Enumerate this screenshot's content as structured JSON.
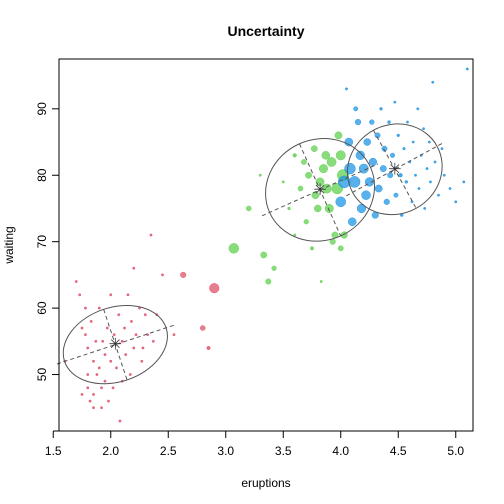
{
  "chart_data": {
    "type": "scatter",
    "title": "Uncertainty",
    "xlabel": "eruptions",
    "ylabel": "waiting",
    "xlim": [
      1.55,
      5.15
    ],
    "ylim": [
      41.5,
      97.5
    ],
    "grid": false,
    "x_ticks": [
      "1.5",
      "2.0",
      "2.5",
      "3.0",
      "3.5",
      "4.0",
      "4.5",
      "5.0"
    ],
    "y_ticks": [
      "50",
      "60",
      "70",
      "80",
      "90"
    ],
    "marker_size_encodes": "classification uncertainty",
    "series": [
      {
        "color": "#DF536B",
        "points": [
          [
            1.6,
            52
          ],
          [
            1.7,
            64
          ],
          [
            1.73,
            62
          ],
          [
            1.75,
            47
          ],
          [
            1.75,
            57
          ],
          [
            1.78,
            60
          ],
          [
            1.78,
            56
          ],
          [
            1.8,
            54
          ],
          [
            1.8,
            50
          ],
          [
            1.8,
            48
          ],
          [
            1.82,
            46
          ],
          [
            1.83,
            58
          ],
          [
            1.85,
            52
          ],
          [
            1.85,
            47
          ],
          [
            1.85,
            45
          ],
          [
            1.87,
            55
          ],
          [
            1.88,
            50
          ],
          [
            1.9,
            60
          ],
          [
            1.9,
            51
          ],
          [
            1.92,
            48
          ],
          [
            1.92,
            45
          ],
          [
            1.93,
            55
          ],
          [
            1.95,
            53
          ],
          [
            1.95,
            49
          ],
          [
            1.97,
            57
          ],
          [
            1.98,
            46
          ],
          [
            2.0,
            52
          ],
          [
            2.0,
            62
          ],
          [
            2.02,
            48
          ],
          [
            2.03,
            56
          ],
          [
            2.05,
            51
          ],
          [
            2.07,
            59
          ],
          [
            2.08,
            43
          ],
          [
            2.1,
            55
          ],
          [
            2.1,
            49
          ],
          [
            2.12,
            57
          ],
          [
            2.13,
            53
          ],
          [
            2.15,
            62
          ],
          [
            2.17,
            50
          ],
          [
            2.18,
            58
          ],
          [
            2.2,
            54
          ],
          [
            2.2,
            66
          ],
          [
            2.22,
            56
          ],
          [
            2.25,
            60
          ],
          [
            2.27,
            52
          ],
          [
            2.28,
            54
          ],
          [
            2.3,
            59
          ],
          [
            2.32,
            56
          ],
          [
            2.35,
            71
          ],
          [
            2.37,
            55
          ],
          [
            2.4,
            59
          ],
          [
            2.45,
            65
          ],
          [
            2.55,
            56
          ],
          [
            2.63,
            65
          ],
          [
            2.8,
            57
          ],
          [
            2.85,
            54
          ],
          [
            2.9,
            63
          ]
        ]
      },
      {
        "color": "#61D04F",
        "points": [
          [
            3.07,
            69
          ],
          [
            3.2,
            75
          ],
          [
            3.3,
            80
          ],
          [
            3.33,
            68
          ],
          [
            3.37,
            64
          ],
          [
            3.42,
            66
          ],
          [
            3.5,
            79
          ],
          [
            3.55,
            75
          ],
          [
            3.6,
            71
          ],
          [
            3.6,
            83
          ],
          [
            3.65,
            78
          ],
          [
            3.68,
            82
          ],
          [
            3.7,
            73
          ],
          [
            3.72,
            80
          ],
          [
            3.75,
            69
          ],
          [
            3.77,
            84
          ],
          [
            3.78,
            77
          ],
          [
            3.8,
            75
          ],
          [
            3.82,
            79
          ],
          [
            3.83,
            64
          ],
          [
            3.85,
            81
          ],
          [
            3.87,
            83
          ],
          [
            3.88,
            78
          ],
          [
            3.9,
            75
          ],
          [
            3.92,
            82
          ],
          [
            3.93,
            70
          ],
          [
            3.95,
            71
          ],
          [
            3.97,
            78
          ],
          [
            3.98,
            86
          ],
          [
            4.0,
            69
          ],
          [
            4.0,
            83
          ],
          [
            4.02,
            80
          ],
          [
            4.03,
            71
          ]
        ]
      },
      {
        "color": "#2297E6",
        "points": [
          [
            4.0,
            76
          ],
          [
            4.03,
            79
          ],
          [
            4.05,
            93
          ],
          [
            4.07,
            85
          ],
          [
            4.08,
            81
          ],
          [
            4.1,
            73
          ],
          [
            4.12,
            79
          ],
          [
            4.13,
            90
          ],
          [
            4.15,
            88
          ],
          [
            4.17,
            83
          ],
          [
            4.18,
            75
          ],
          [
            4.2,
            81
          ],
          [
            4.22,
            77
          ],
          [
            4.23,
            85
          ],
          [
            4.25,
            79
          ],
          [
            4.27,
            88
          ],
          [
            4.28,
            82
          ],
          [
            4.3,
            74
          ],
          [
            4.32,
            86
          ],
          [
            4.33,
            78
          ],
          [
            4.35,
            90
          ],
          [
            4.37,
            81
          ],
          [
            4.38,
            84
          ],
          [
            4.4,
            76
          ],
          [
            4.42,
            88
          ],
          [
            4.43,
            80
          ],
          [
            4.45,
            83
          ],
          [
            4.47,
            91
          ],
          [
            4.48,
            77
          ],
          [
            4.5,
            86
          ],
          [
            4.52,
            80
          ],
          [
            4.53,
            74
          ],
          [
            4.55,
            84
          ],
          [
            4.57,
            79
          ],
          [
            4.58,
            88
          ],
          [
            4.6,
            82
          ],
          [
            4.62,
            76
          ],
          [
            4.63,
            85
          ],
          [
            4.65,
            80
          ],
          [
            4.67,
            90
          ],
          [
            4.68,
            78
          ],
          [
            4.7,
            83
          ],
          [
            4.72,
            87
          ],
          [
            4.73,
            75
          ],
          [
            4.75,
            81
          ],
          [
            4.77,
            85
          ],
          [
            4.78,
            79
          ],
          [
            4.8,
            94
          ],
          [
            4.82,
            82
          ],
          [
            4.85,
            77
          ],
          [
            4.88,
            84
          ],
          [
            4.9,
            80
          ],
          [
            4.95,
            78
          ],
          [
            5.0,
            76
          ],
          [
            5.07,
            79
          ],
          [
            5.1,
            96
          ]
        ]
      }
    ],
    "components": [
      {
        "mean": [
          2.04,
          54.5
        ],
        "color": "#555555"
      },
      {
        "mean": [
          3.82,
          77.8
        ],
        "color": "#555555"
      },
      {
        "mean": [
          4.47,
          80.9
        ],
        "color": "#555555"
      }
    ]
  }
}
